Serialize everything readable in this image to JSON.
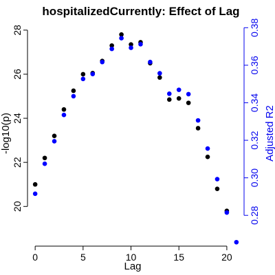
{
  "chart_data": {
    "type": "scatter",
    "title": "hospitalizedCurrently: Effect of Lag",
    "xlabel": "Lag",
    "ylabel": "-log10(p)",
    "y2label": "Adjusted R2",
    "xlim": [
      -0.8,
      21.8
    ],
    "ylim": [
      18.2,
      28.4
    ],
    "y2lim": [
      0.2636,
      0.3834
    ],
    "x_ticks": [
      0,
      5,
      10,
      15,
      20
    ],
    "y_ticks": [
      20,
      22,
      24,
      26,
      28
    ],
    "y2_ticks": [
      0.28,
      0.3,
      0.32,
      0.34,
      0.36,
      0.38
    ],
    "x_tick_labels": [
      "0",
      "5",
      "10",
      "15",
      "20"
    ],
    "y_tick_labels": [
      "20",
      "22",
      "24",
      "26",
      "28"
    ],
    "y2_tick_labels": [
      "0.28",
      "0.30",
      "0.32",
      "0.34",
      "0.36",
      "0.38"
    ],
    "grid": false,
    "series": [
      {
        "color": "#000000",
        "axis": "left",
        "x": [
          0,
          1,
          2,
          3,
          4,
          5,
          6,
          7,
          8,
          9,
          10,
          11,
          12,
          13,
          14,
          15,
          16,
          17,
          18,
          19,
          20
        ],
        "values": [
          21.0,
          22.2,
          23.2,
          24.4,
          25.25,
          26.0,
          26.05,
          26.6,
          27.3,
          27.8,
          27.35,
          27.45,
          26.5,
          25.85,
          24.85,
          24.9,
          24.7,
          23.55,
          22.25,
          20.8,
          19.8
        ]
      },
      {
        "color": "#0000ff",
        "axis": "right",
        "x": [
          0,
          1,
          2,
          3,
          4,
          5,
          6,
          7,
          8,
          9,
          10,
          11,
          12,
          13,
          14,
          15,
          16,
          17,
          18,
          19,
          20,
          21
        ],
        "values": [
          0.2915,
          0.3075,
          0.3195,
          0.3335,
          0.3435,
          0.3527,
          0.3553,
          0.3617,
          0.3687,
          0.3744,
          0.3693,
          0.3712,
          0.3617,
          0.3557,
          0.3448,
          0.3469,
          0.3446,
          0.3306,
          0.3156,
          0.2993,
          0.2815,
          0.2657
        ]
      }
    ]
  }
}
